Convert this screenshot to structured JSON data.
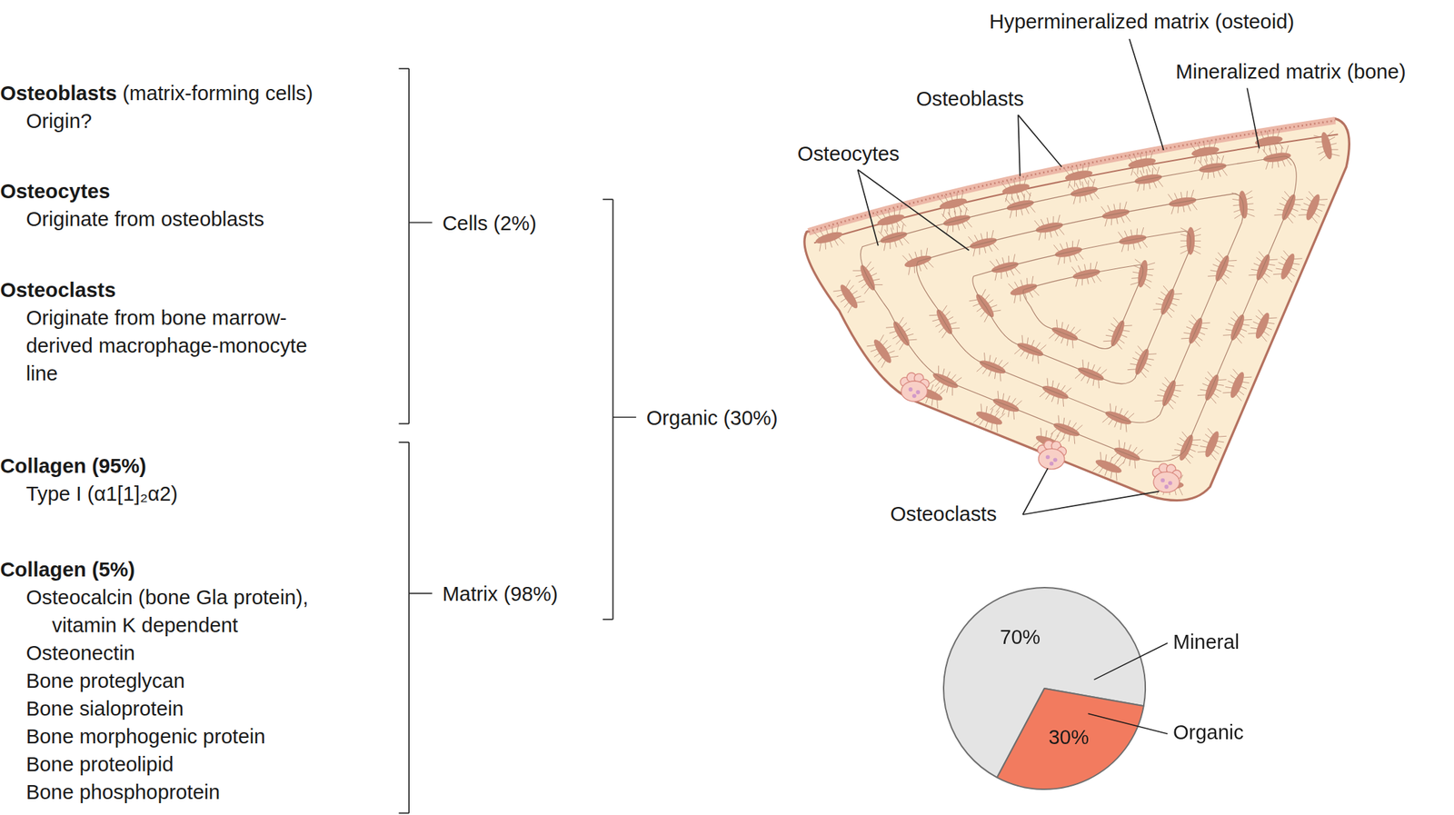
{
  "diagram": {
    "cells": {
      "bracket_label": "Cells (2%)",
      "items": [
        {
          "title": "Osteoblasts",
          "title_note": "(matrix-forming cells)",
          "lines": [
            {
              "text": "Origin?"
            }
          ]
        },
        {
          "title": "Osteocytes",
          "lines": [
            {
              "text": "Originate from osteoblasts"
            }
          ]
        },
        {
          "title": "Osteoclasts",
          "lines": [
            {
              "text": "Originate from bone marrow-"
            },
            {
              "text": "derived macrophage-monocyte"
            },
            {
              "text": "line"
            }
          ]
        }
      ]
    },
    "matrix": {
      "bracket_label": "Matrix (98%)",
      "items": [
        {
          "title": "Collagen (95%)",
          "lines": [
            {
              "text": "Type I (α1[1]₂α2)"
            }
          ]
        },
        {
          "title": "Collagen (5%)",
          "lines": [
            {
              "text": "Osteocalcin (bone Gla protein),"
            },
            {
              "text": "vitamin K dependent",
              "indent": true
            },
            {
              "text": "Osteonectin"
            },
            {
              "text": "Bone proteglycan"
            },
            {
              "text": "Bone sialoprotein"
            },
            {
              "text": "Bone morphogenic protein"
            },
            {
              "text": "Bone proteolipid"
            },
            {
              "text": "Bone phosphoprotein"
            }
          ]
        }
      ]
    },
    "organic_bracket_label": "Organic (30%)",
    "illustration_labels": {
      "osteoid": "Hypermineralized matrix (osteoid)",
      "bone": "Mineralized matrix (bone)",
      "osteoblasts": "Osteoblasts",
      "osteocytes": "Osteocytes",
      "osteoclasts": "Osteoclasts"
    }
  },
  "chart_data": {
    "type": "pie",
    "categories": [
      "Mineral",
      "Organic"
    ],
    "values": [
      70,
      30
    ],
    "value_labels": [
      "70%",
      "30%"
    ],
    "colors": [
      "#e4e4e4",
      "#f27b5f"
    ],
    "data_labels": true
  }
}
